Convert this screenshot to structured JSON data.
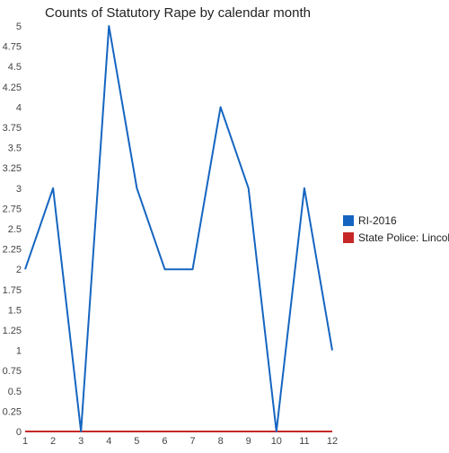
{
  "chart_data": {
    "type": "line",
    "title": "Counts of Statutory Rape by calendar month",
    "xlabel": "",
    "ylabel": "",
    "x": [
      1,
      2,
      3,
      4,
      5,
      6,
      7,
      8,
      9,
      10,
      11,
      12
    ],
    "x_ticks": [
      "1",
      "2",
      "3",
      "4",
      "5",
      "6",
      "7",
      "8",
      "9",
      "10",
      "11",
      "12"
    ],
    "ylim": [
      0,
      5
    ],
    "y_ticks": [
      "0",
      "0.25",
      "0.5",
      "0.75",
      "1",
      "1.25",
      "1.5",
      "1.75",
      "2",
      "2.25",
      "2.5",
      "2.75",
      "3",
      "3.25",
      "3.5",
      "3.75",
      "4",
      "4.25",
      "4.5",
      "4.75",
      "5"
    ],
    "grid": false,
    "legend_position": "right",
    "series": [
      {
        "name": "RI-2016",
        "color": "#1565c0",
        "values": [
          2,
          3,
          0,
          5,
          3,
          2,
          2,
          4,
          3,
          0,
          3,
          1
        ]
      },
      {
        "name": "State Police: Lincoln",
        "color": "#c62828",
        "values": [
          0,
          0,
          0,
          0,
          0,
          0,
          0,
          0,
          0,
          0,
          0,
          0
        ]
      }
    ]
  }
}
